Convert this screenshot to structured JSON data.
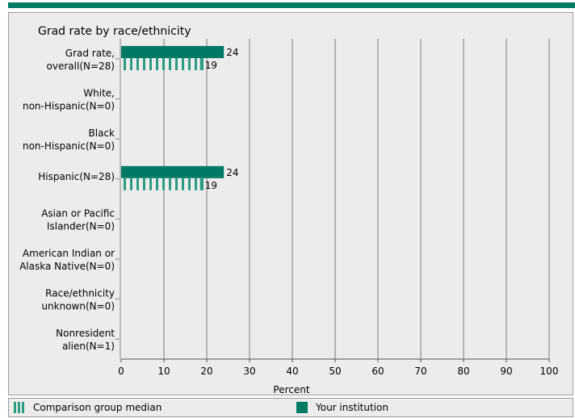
{
  "colors": {
    "institution": "#007a64",
    "comparison": "#2a9c82",
    "panel_bg": "#ececec",
    "grid": "#7a7a7a",
    "border": "#9c9c9c"
  },
  "legend": {
    "comparison_label": "Comparison group median",
    "institution_label": "Your institution"
  },
  "chart_data": {
    "type": "bar",
    "orientation": "horizontal",
    "title": "Grad rate by race/ethnicity",
    "xlabel": "Percent",
    "ylabel": "",
    "xlim": [
      0,
      100
    ],
    "x_ticks": [
      0,
      10,
      20,
      30,
      40,
      50,
      60,
      70,
      80,
      90,
      100
    ],
    "grid": true,
    "legend_position": "bottom",
    "categories": [
      [
        "Grad rate,",
        "overall(N=28)"
      ],
      [
        "White,",
        "non-Hispanic(N=0)"
      ],
      [
        "Black",
        "non-Hispanic(N=0)"
      ],
      [
        "Hispanic(N=28)"
      ],
      [
        "Asian or Pacific",
        "Islander(N=0)"
      ],
      [
        "American Indian or",
        "Alaska Native(N=0)"
      ],
      [
        "Race/ethnicity",
        "unknown(N=0)"
      ],
      [
        "Nonresident",
        "alien(N=1)"
      ]
    ],
    "series": [
      {
        "name": "Your institution",
        "values": [
          24,
          null,
          null,
          24,
          null,
          null,
          null,
          null
        ]
      },
      {
        "name": "Comparison group median",
        "values": [
          19,
          null,
          null,
          19,
          null,
          null,
          null,
          null
        ]
      }
    ]
  }
}
